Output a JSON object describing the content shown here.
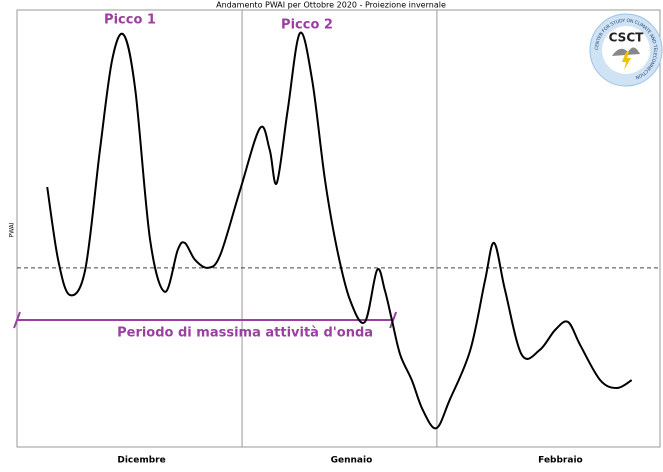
{
  "chart_data": {
    "type": "line",
    "title": "Andamento PWAI per Ottobre 2020 - Proiezione invernale",
    "y_label": "PWAI",
    "categories": [
      "Dicembre",
      "Gennaio",
      "Febbraio"
    ],
    "dividers": [
      35,
      65.3
    ],
    "xlim": [
      0,
      100
    ],
    "ylim": [
      0,
      100
    ],
    "reference_line": 41,
    "color": "#000000",
    "x": [
      4.7,
      6.4,
      8.2,
      10.6,
      12.9,
      14.8,
      16.6,
      18.4,
      20.7,
      23.0,
      25.0,
      26.1,
      27.7,
      29.7,
      31.6,
      34.7,
      37.8,
      39.3,
      40.4,
      42.1,
      44.0,
      45.9,
      47.9,
      49.8,
      51.8,
      54.1,
      56.0,
      57.2,
      58.3,
      59.6,
      61.4,
      63.1,
      65.2,
      67.3,
      70.5,
      72.8,
      74.2,
      75.9,
      78.5,
      81.3,
      83.7,
      85.7,
      87.6,
      90.7,
      93.3,
      95.6
    ],
    "values": [
      59.5,
      42.8,
      34.8,
      40.5,
      68.0,
      88.6,
      94.3,
      81.7,
      47.4,
      35.5,
      45.1,
      46.7,
      42.8,
      41.0,
      43.9,
      58.8,
      73.0,
      68.0,
      60.4,
      77.1,
      94.7,
      84.0,
      61.1,
      45.1,
      33.6,
      28.6,
      40.5,
      35.9,
      29.1,
      21.1,
      15.3,
      8.5,
      4.3,
      10.8,
      22.2,
      38.2,
      46.7,
      35.9,
      21.1,
      22.2,
      26.8,
      28.6,
      23.3,
      15.3,
      13.5,
      15.3
    ],
    "annotations": [
      "Picco 1",
      "Picco 2"
    ],
    "period": {
      "label": "Periodo di massima attività d'onda",
      "x": [
        0,
        58.5
      ]
    },
    "logo": {
      "title": "CSCT",
      "ring": "CENTER FOR STUDY ON CLIMATE AND TELECONNECTION"
    }
  }
}
